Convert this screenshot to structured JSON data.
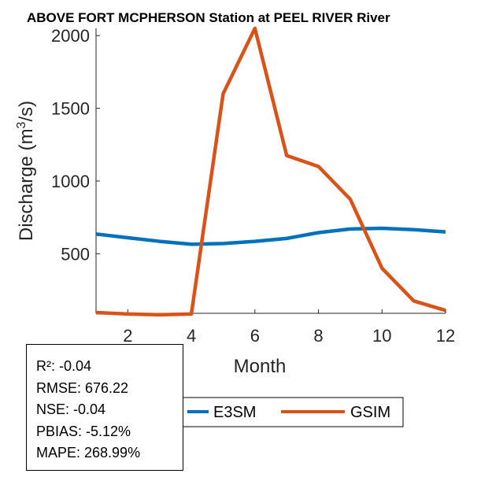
{
  "chart_data": {
    "type": "line",
    "title": "ABOVE FORT MCPHERSON  Station at  PEEL RIVER  River",
    "xlabel": "Month",
    "ylabel": "Discharge (m³/s)",
    "ylabel_parts": {
      "pre": "Discharge (m",
      "sup": "3",
      "post": "/s)"
    },
    "xlim": [
      1,
      12
    ],
    "ylim": [
      90,
      2050
    ],
    "xticks": [
      2,
      4,
      6,
      8,
      10,
      12
    ],
    "yticks": [
      500,
      1000,
      1500,
      2000
    ],
    "x": [
      1,
      2,
      3,
      4,
      5,
      6,
      7,
      8,
      9,
      10,
      11,
      12
    ],
    "series": [
      {
        "name": "E3SM",
        "color": "#0072BD",
        "values": [
          635,
          610,
          585,
          565,
          570,
          585,
          605,
          645,
          670,
          675,
          665,
          650
        ]
      },
      {
        "name": "GSIM",
        "color": "#D95319",
        "values": [
          95,
          85,
          80,
          85,
          1600,
          2050,
          1175,
          1100,
          875,
          400,
          175,
          110
        ]
      }
    ],
    "grid": false,
    "legend_position": "bottom"
  },
  "stats": [
    "R²: -0.04",
    "RMSE: 676.22",
    "NSE: -0.04",
    "PBIAS: -5.12%",
    "MAPE: 268.99%"
  ]
}
